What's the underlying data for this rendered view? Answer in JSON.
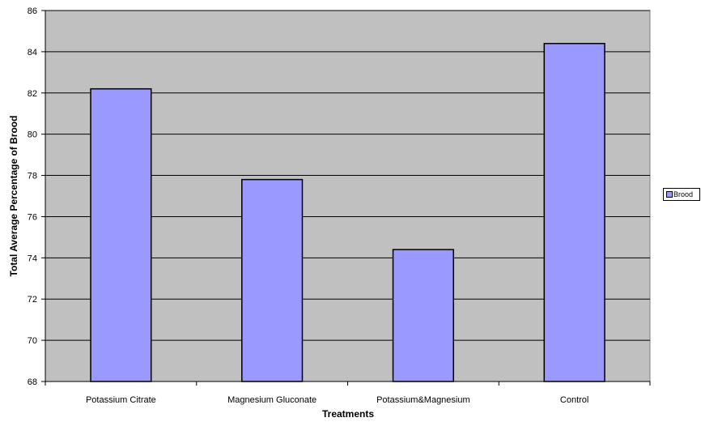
{
  "chart_data": {
    "type": "bar",
    "title": "",
    "xlabel": "Treatments",
    "ylabel": "Total Average Percentage of Brood",
    "categories": [
      "Potassium Citrate",
      "Magnesium Gluconate",
      "Potassium&Magnesium",
      "Control"
    ],
    "series": [
      {
        "name": "Brood",
        "values": [
          82.2,
          77.8,
          74.4,
          84.4
        ]
      }
    ],
    "ylim": [
      68,
      86
    ],
    "yticks": [
      68,
      70,
      72,
      74,
      76,
      78,
      80,
      82,
      84,
      86
    ],
    "grid": true,
    "legend": "right",
    "colors": {
      "bar": "#9999ff",
      "plot_bg": "#c0c0c0",
      "gridline": "#000000"
    }
  }
}
